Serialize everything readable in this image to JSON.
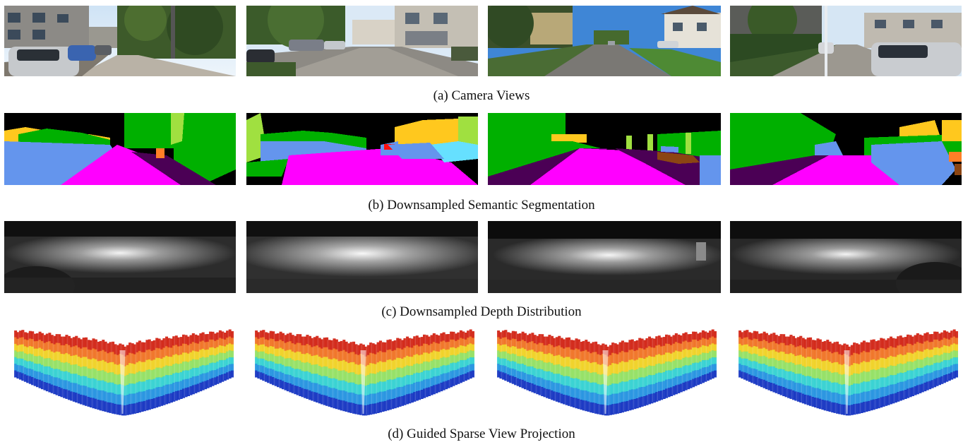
{
  "figure": {
    "rows": [
      {
        "id": "camera",
        "caption": "(a) Camera Views",
        "panel_kind": "camera-photo",
        "panels": 4
      },
      {
        "id": "segmentation",
        "caption": "(b) Downsampled Semantic Segmentation",
        "panel_kind": "semantic-segmentation-map",
        "panels": 4,
        "palette": {
          "sky": "#000000",
          "vegetation": "#00b000",
          "road": "#ff00ff",
          "sidewalk": "#4b0055",
          "car": "#6495ed",
          "building": "#ffc81e",
          "pole": "#a0e040",
          "terrain": "#8b4513",
          "truck": "#ff1010",
          "fence": "#66e0ff",
          "other": "#ff7f27"
        }
      },
      {
        "id": "depth",
        "caption": "(c) Downsampled Depth Distribution",
        "panel_kind": "grayscale-depth-map",
        "panels": 4
      },
      {
        "id": "projection",
        "caption": "(d) Guided Sparse View Projection",
        "panel_kind": "3d-voxel-projection",
        "panels": 4,
        "colormap": [
          "#1030c0",
          "#2090e0",
          "#30d0d0",
          "#90e060",
          "#f0d020",
          "#f07020",
          "#d02010"
        ]
      }
    ]
  }
}
